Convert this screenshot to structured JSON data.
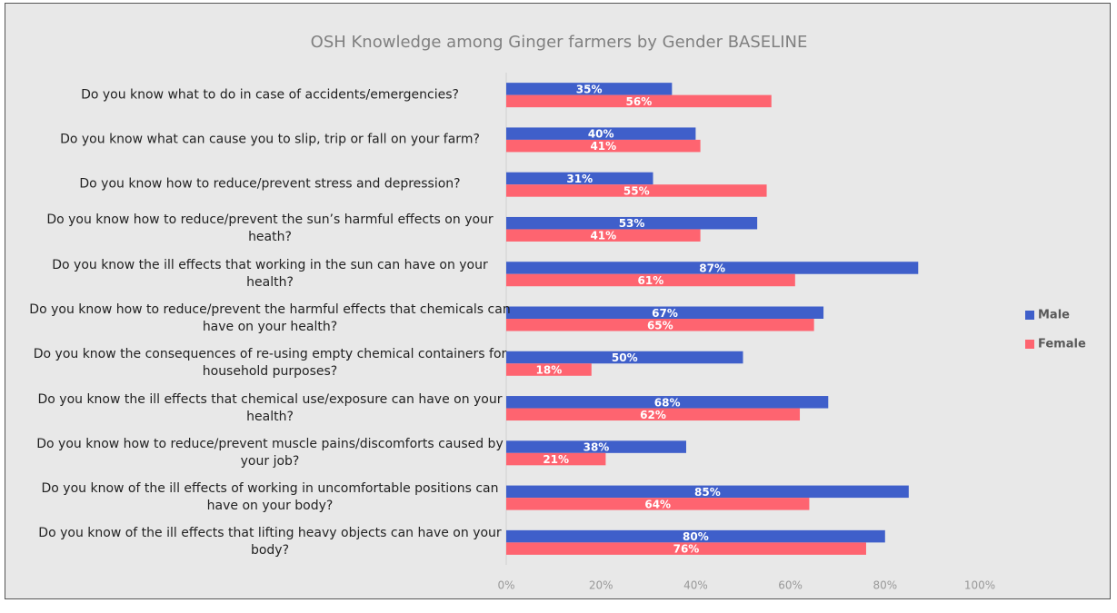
{
  "chart_data": {
    "type": "hbar",
    "title": "OSH Knowledge among Ginger farmers by Gender BASELINE",
    "categories": [
      "Do you know what to do in case of accidents/emergencies?",
      "Do you know what can cause you to slip, trip or fall on your farm?",
      "Do you know how to reduce/prevent stress and depression?",
      "Do you know how to reduce/prevent the sun’s harmful effects on your heath?",
      "Do you know the ill effects that working in the sun can have on your health?",
      "Do you know how to reduce/prevent the harmful effects that chemicals can have on your health?",
      "Do you know the consequences of re-using empty chemical containers for household purposes?",
      "Do you know the ill effects that chemical use/exposure can have on your health?",
      "Do you know how to reduce/prevent muscle pains/discomforts caused by your job?",
      "Do you know of the ill effects of working in uncomfortable positions can have on your body?",
      "Do you know of the ill effects that lifting heavy objects can have on your body?"
    ],
    "series": [
      {
        "name": "Male",
        "color": "#3f5fca",
        "values": [
          35,
          40,
          31,
          53,
          87,
          67,
          50,
          68,
          38,
          85,
          80
        ],
        "value_labels": [
          "35%",
          "40%",
          "31%",
          "53%",
          "87%",
          "67%",
          "50%",
          "68%",
          "38%",
          "85%",
          "80%"
        ]
      },
      {
        "name": "Female",
        "color": "#fe6470",
        "values": [
          56,
          41,
          55,
          41,
          61,
          65,
          18,
          62,
          21,
          64,
          76
        ],
        "value_labels": [
          "56%",
          "41%",
          "55%",
          "41%",
          "61%",
          "65%",
          "18%",
          "62%",
          "21%",
          "64%",
          "76%"
        ]
      }
    ],
    "xlim": [
      0,
      100
    ],
    "xticks": [
      {
        "value": 0,
        "label": "0%"
      },
      {
        "value": 20,
        "label": "20%"
      },
      {
        "value": 40,
        "label": "40%"
      },
      {
        "value": 60,
        "label": "60%"
      },
      {
        "value": 80,
        "label": "80%"
      },
      {
        "value": 100,
        "label": "100%"
      }
    ],
    "legend": "right",
    "grid": false
  }
}
